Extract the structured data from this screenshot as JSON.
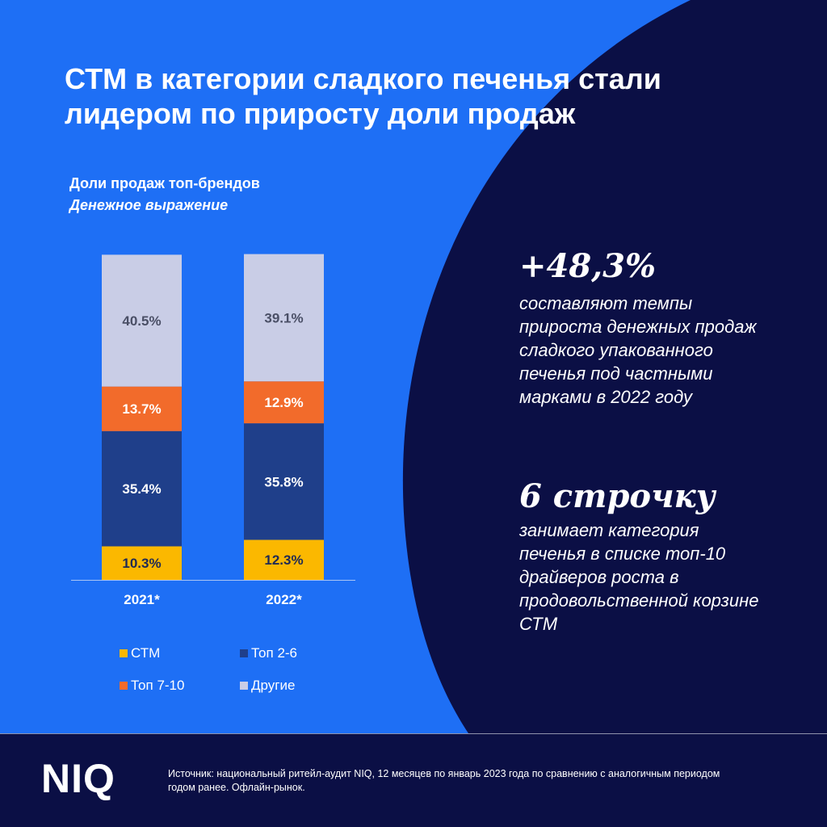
{
  "title": "СТМ в категории сладкого печенья стали лидером по приросту доли продаж",
  "subtitle": "Доли продаж топ-брендов",
  "subtitle_italic": "Денежное выражение",
  "colors": {
    "background_blue": "#1e6ff5",
    "dark_navy": "#0b0f45",
    "ctm": "#fbb800",
    "top2_6": "#1f3f8a",
    "top7_10": "#f26b2b",
    "others": "#c9cde6"
  },
  "chart_data": {
    "type": "bar",
    "stacked": true,
    "categories": [
      "2021*",
      "2022*"
    ],
    "series": [
      {
        "name": "СТМ",
        "values": [
          10.3,
          12.3
        ],
        "labels": [
          "10.3%",
          "12.3%"
        ],
        "color": "#fbb800",
        "label_color": "#1f2a55"
      },
      {
        "name": "Топ 2-6",
        "values": [
          35.4,
          35.8
        ],
        "labels": [
          "35.4%",
          "35.8%"
        ],
        "color": "#1f3f8a",
        "label_color": "#ffffff"
      },
      {
        "name": "Топ 7-10",
        "values": [
          13.7,
          12.9
        ],
        "labels": [
          "13.7%",
          "12.9%"
        ],
        "color": "#f26b2b",
        "label_color": "#ffffff"
      },
      {
        "name": "Другие",
        "values": [
          40.5,
          39.1
        ],
        "labels": [
          "40.5%",
          "39.1%"
        ],
        "color": "#c9cde6",
        "label_color": "#4a4f66"
      }
    ],
    "ylim": [
      0,
      100
    ],
    "grid": false,
    "legend_placement": "bottom"
  },
  "legend": [
    {
      "label": "СТМ",
      "color": "#fbb800"
    },
    {
      "label": "Топ 2-6",
      "color": "#1f3f8a"
    },
    {
      "label": "Топ 7-10",
      "color": "#f26b2b"
    },
    {
      "label": "Другие",
      "color": "#c9cde6"
    }
  ],
  "stat1": {
    "value": "+48,3%",
    "text": "составляют темпы прироста денежных продаж сладкого упакованного печенья под частными марками в 2022 году"
  },
  "stat2": {
    "value": "6 строчку",
    "text": "занимает категория печенья в списке топ-10 драйверов роста в продовольственной корзине СТМ"
  },
  "logo": "NIQ",
  "source": "Источник: национальный ритейл-аудит NIQ, 12 месяцев по январь 2023 года по сравнению с аналогичным периодом годом ранее. Офлайн-рынок."
}
